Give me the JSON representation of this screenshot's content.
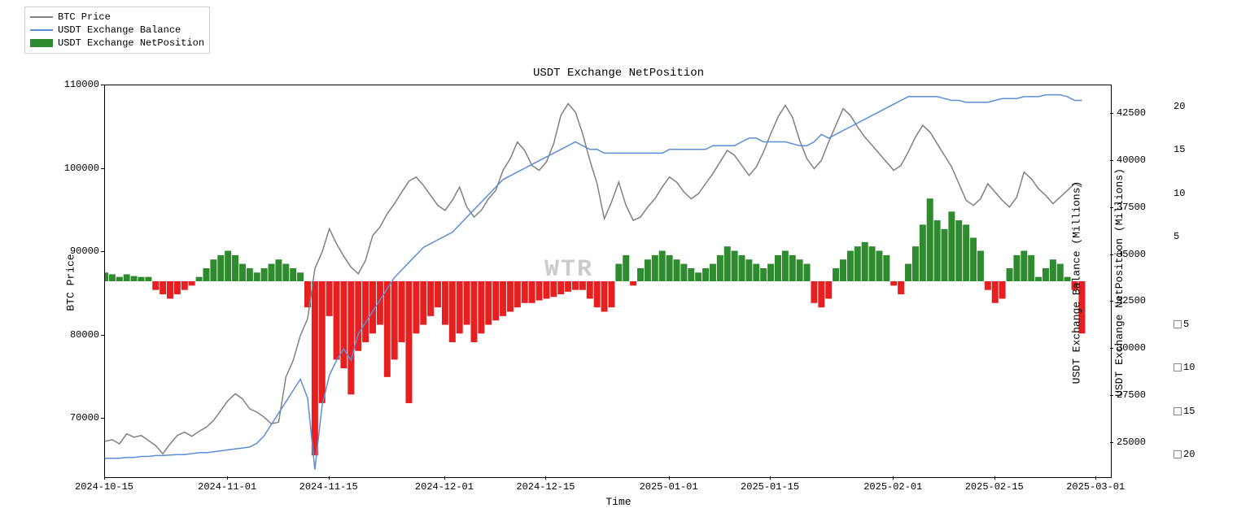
{
  "title": "USDT Exchange NetPosition",
  "watermark": "WTR",
  "legend": [
    {
      "type": "line",
      "color": "#808080",
      "label": "BTC Price"
    },
    {
      "type": "line",
      "color": "#5b8ed6",
      "label": "USDT Exchange Balance"
    },
    {
      "type": "rect",
      "color": "#2e8b2e",
      "label": "USDT Exchange NetPosition"
    }
  ],
  "xlabel": "Time",
  "ylabel_left": "BTC Price",
  "ylabel_right1": "USDT Exchange Balance (Millions)",
  "ylabel_right2": "USDT Exchange NetPosition (Millions)",
  "left_axis": {
    "min": 63000,
    "max": 110000,
    "ticks": [
      70000,
      80000,
      90000,
      100000,
      110000
    ]
  },
  "right1_axis": {
    "min": 23200,
    "max": 44000,
    "ticks": [
      25000,
      27500,
      30000,
      32500,
      35000,
      37500,
      40000,
      42500
    ]
  },
  "right2_axis": {
    "min": -22.5,
    "max": 22.5,
    "ticks_pos": [
      5,
      10,
      15,
      20
    ],
    "ticks_neg": [
      5,
      10,
      15,
      20
    ]
  },
  "x_axis": {
    "min": 0,
    "max": 139,
    "ticks": [
      {
        "pos": 0,
        "label": "2024-10-15"
      },
      {
        "pos": 17,
        "label": "2024-11-01"
      },
      {
        "pos": 31,
        "label": "2024-11-15"
      },
      {
        "pos": 47,
        "label": "2024-12-01"
      },
      {
        "pos": 61,
        "label": "2024-12-15"
      },
      {
        "pos": 78,
        "label": "2025-01-01"
      },
      {
        "pos": 92,
        "label": "2025-01-15"
      },
      {
        "pos": 109,
        "label": "2025-02-01"
      },
      {
        "pos": 123,
        "label": "2025-02-15"
      },
      {
        "pos": 137,
        "label": "2025-03-01"
      }
    ]
  },
  "colors": {
    "btc": "#808080",
    "balance": "#5b8ed6",
    "pos_bar": "#2e8b2e",
    "neg_bar": "#e62020",
    "frame": "#000000",
    "bg": "#ffffff"
  },
  "btc_price": [
    67300,
    67500,
    67000,
    68200,
    67800,
    68000,
    67400,
    66800,
    65800,
    67000,
    68000,
    68400,
    67900,
    68500,
    69000,
    69800,
    71000,
    72200,
    73000,
    72400,
    71200,
    70800,
    70200,
    69400,
    69600,
    75000,
    77000,
    80000,
    82000,
    88000,
    90000,
    92800,
    91000,
    89500,
    88200,
    87400,
    89000,
    92000,
    93000,
    94600,
    95800,
    97200,
    98500,
    99000,
    98000,
    96800,
    95600,
    95000,
    96200,
    97800,
    95400,
    94200,
    95000,
    96400,
    97400,
    99800,
    101200,
    103200,
    102200,
    100400,
    99800,
    100800,
    103000,
    106400,
    107800,
    106800,
    104200,
    101000,
    98200,
    94000,
    96000,
    98400,
    95600,
    93800,
    94200,
    95400,
    96400,
    97800,
    99000,
    98400,
    97200,
    96400,
    97000,
    98200,
    99400,
    100800,
    102200,
    101600,
    100400,
    99200,
    100200,
    102000,
    104200,
    106200,
    107600,
    106200,
    103400,
    101200,
    100000,
    101000,
    103200,
    105200,
    107200,
    106400,
    105000,
    103800,
    102800,
    101800,
    100800,
    99800,
    100400,
    102000,
    103800,
    105200,
    104400,
    103000,
    101600,
    100200,
    98200,
    96200,
    95600,
    96400,
    98200,
    97200,
    96200,
    95400,
    96600,
    99600,
    98800,
    97600,
    96800,
    95800,
    96600,
    97400,
    98200,
    97800
  ],
  "usdt_balance": [
    24200,
    24200,
    24200,
    24250,
    24250,
    24300,
    24300,
    24350,
    24350,
    24380,
    24400,
    24400,
    24450,
    24500,
    24500,
    24550,
    24600,
    24650,
    24700,
    24750,
    24800,
    25000,
    25400,
    26000,
    26600,
    27200,
    27800,
    28400,
    27400,
    23600,
    27000,
    28600,
    29400,
    30000,
    29400,
    30800,
    31400,
    32000,
    32600,
    33200,
    33800,
    34200,
    34600,
    35000,
    35400,
    35600,
    35800,
    36000,
    36200,
    36600,
    37000,
    37400,
    37800,
    38200,
    38600,
    39000,
    39200,
    39400,
    39600,
    39800,
    40000,
    40200,
    40400,
    40600,
    40800,
    41000,
    40800,
    40600,
    40600,
    40400,
    40400,
    40400,
    40400,
    40400,
    40400,
    40400,
    40400,
    40400,
    40600,
    40600,
    40600,
    40600,
    40600,
    40600,
    40800,
    40800,
    40800,
    40800,
    41000,
    41200,
    41200,
    41000,
    41000,
    41000,
    41000,
    40900,
    40800,
    40800,
    41000,
    41400,
    41200,
    41400,
    41600,
    41800,
    42000,
    42200,
    42400,
    42600,
    42800,
    43000,
    43200,
    43400,
    43400,
    43400,
    43400,
    43400,
    43300,
    43200,
    43200,
    43100,
    43100,
    43100,
    43100,
    43200,
    43300,
    43300,
    43300,
    43400,
    43400,
    43400,
    43500,
    43500,
    43500,
    43400,
    43200,
    43200
  ],
  "netposition": [
    1.0,
    0.8,
    0.5,
    0.8,
    0.6,
    0.5,
    0.5,
    -1.0,
    -1.5,
    -2.0,
    -1.5,
    -1.0,
    -0.5,
    0.5,
    1.5,
    2.5,
    3.0,
    3.5,
    3.0,
    2.0,
    1.5,
    1.0,
    1.5,
    2.0,
    2.5,
    2.0,
    1.5,
    1.0,
    -3.0,
    -20.0,
    -14.0,
    -4.0,
    -9.0,
    -10.0,
    -13.0,
    -8.0,
    -7.0,
    -6.0,
    -5.0,
    -11.0,
    -9.0,
    -7.0,
    -14.0,
    -6.0,
    -5.0,
    -4.0,
    -3.0,
    -5.0,
    -7.0,
    -6.0,
    -5.0,
    -7.0,
    -6.0,
    -5.0,
    -4.5,
    -4.0,
    -3.5,
    -3.0,
    -2.5,
    -2.5,
    -2.2,
    -2.0,
    -1.8,
    -1.5,
    -1.2,
    -1.0,
    -1.0,
    -2.0,
    -3.0,
    -3.5,
    -3.0,
    2.0,
    3.0,
    -0.5,
    1.5,
    2.5,
    3.0,
    3.5,
    3.0,
    2.5,
    2.0,
    1.5,
    1.0,
    1.5,
    2.0,
    3.0,
    4.0,
    3.5,
    3.0,
    2.5,
    2.0,
    1.5,
    2.0,
    3.0,
    3.5,
    3.0,
    2.5,
    2.0,
    -2.5,
    -3.0,
    -2.0,
    1.5,
    2.5,
    3.5,
    4.0,
    4.5,
    4.0,
    3.5,
    3.0,
    -0.5,
    -1.5,
    2.0,
    4.0,
    6.5,
    9.5,
    7.0,
    6.0,
    8.0,
    7.0,
    6.5,
    5.0,
    3.5,
    -1.0,
    -2.5,
    -2.0,
    1.5,
    3.0,
    3.5,
    3.0,
    0.5,
    1.5,
    2.5,
    2.0,
    0.5,
    -1.0,
    -6.0
  ]
}
